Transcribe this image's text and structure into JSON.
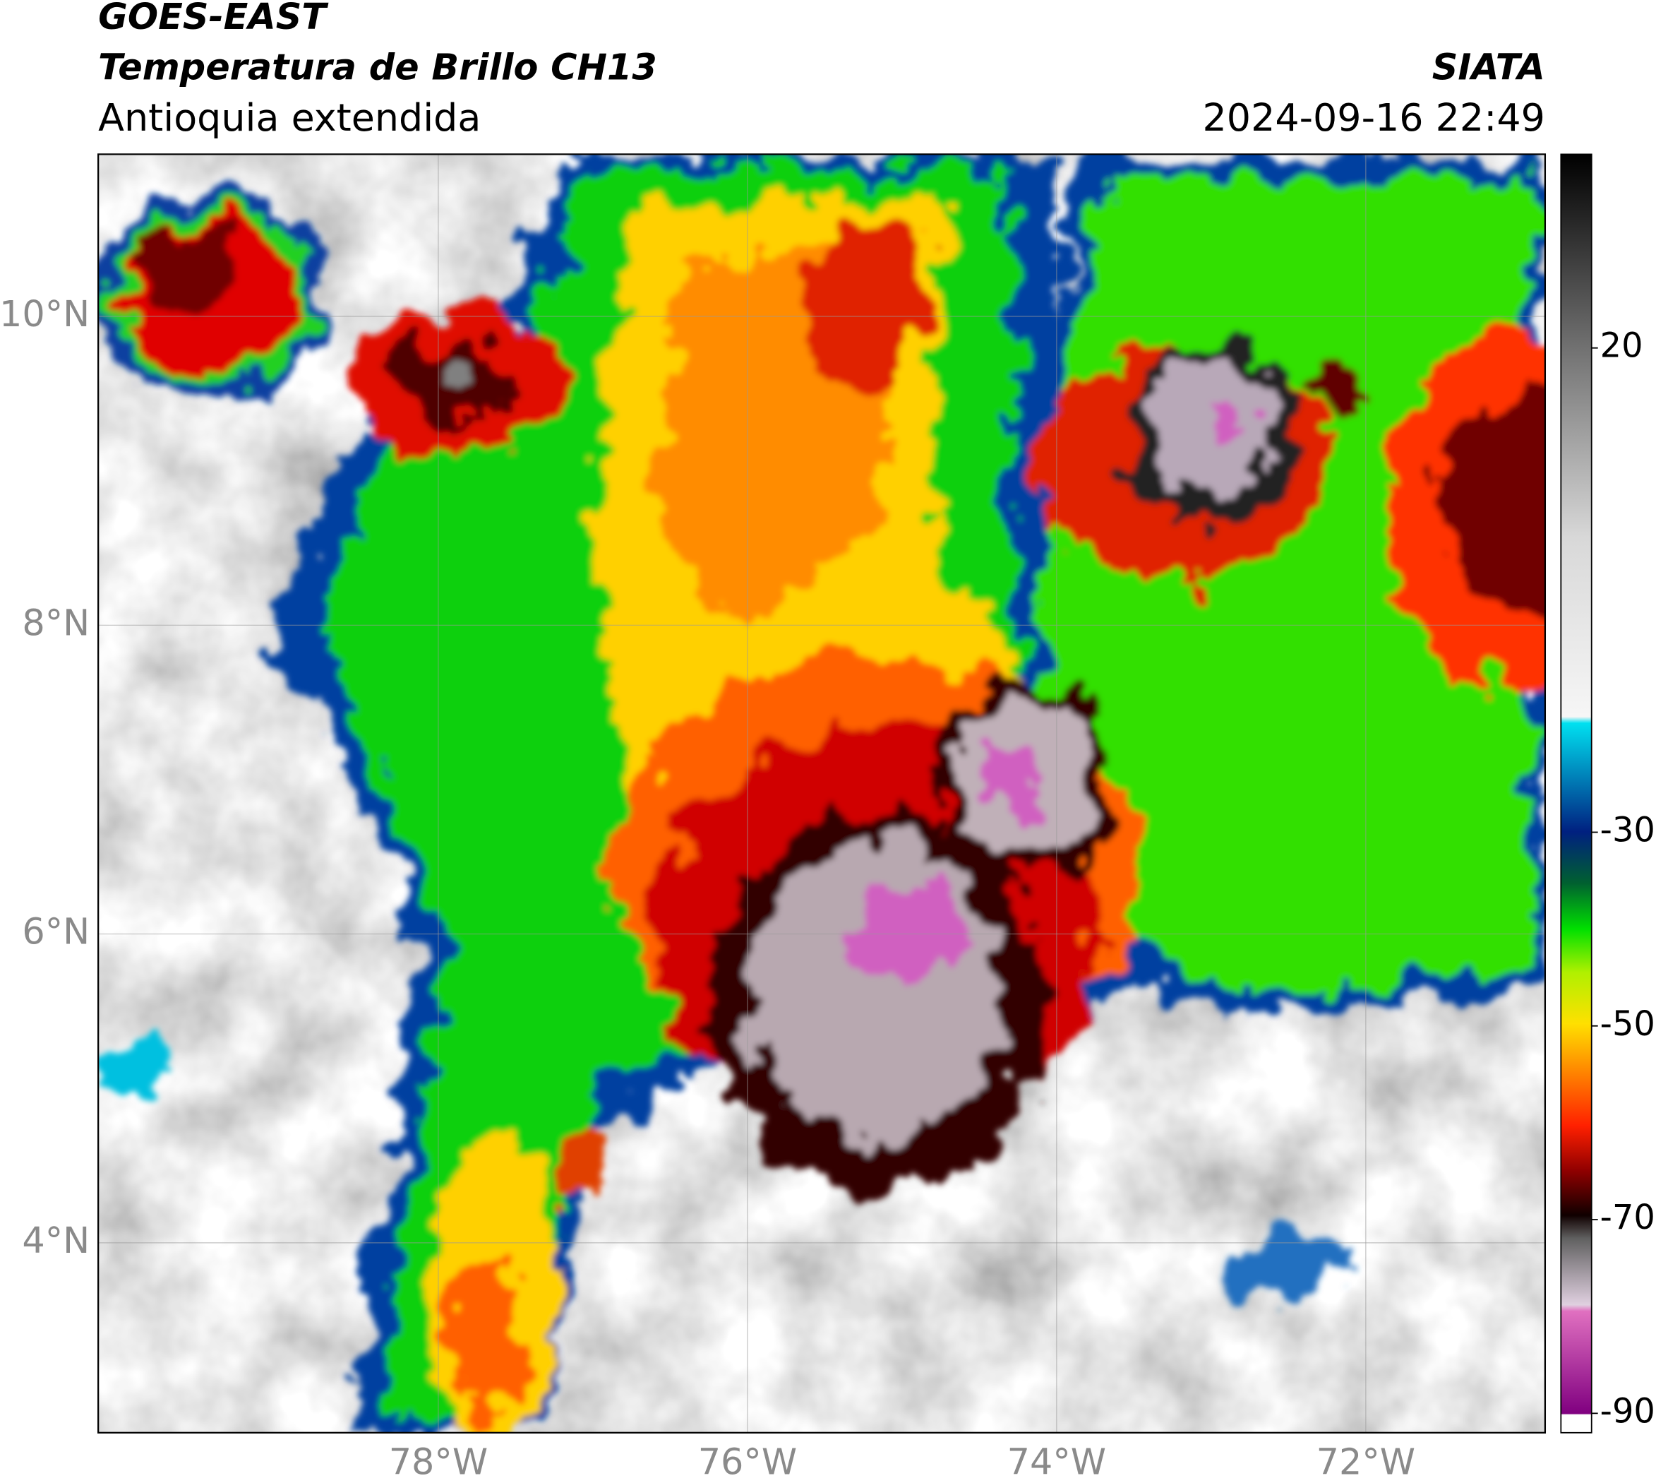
{
  "header": {
    "title": "GOES-EAST",
    "subtitle": "Temperatura de Brillo CH13",
    "region": "Antioquia extendida",
    "source": "SIATA",
    "timestamp": "2024-09-16 22:49"
  },
  "map": {
    "lonlim": [
      -80.2,
      -70.84
    ],
    "latlim": [
      2.77,
      11.05
    ],
    "lat_ticks": [
      {
        "value": 10,
        "label": "10°N"
      },
      {
        "value": 8,
        "label": "8°N"
      },
      {
        "value": 6,
        "label": "6°N"
      },
      {
        "value": 4,
        "label": "4°N"
      }
    ],
    "lon_ticks": [
      {
        "value": -78,
        "label": "78°W"
      },
      {
        "value": -76,
        "label": "76°W"
      },
      {
        "value": -74,
        "label": "74°W"
      },
      {
        "value": -72,
        "label": "72°W"
      }
    ],
    "grid": true
  },
  "colorbar": {
    "clim": [
      -92,
      40
    ],
    "ticks": [
      20,
      -30,
      -50,
      -70,
      -90
    ]
  }
}
